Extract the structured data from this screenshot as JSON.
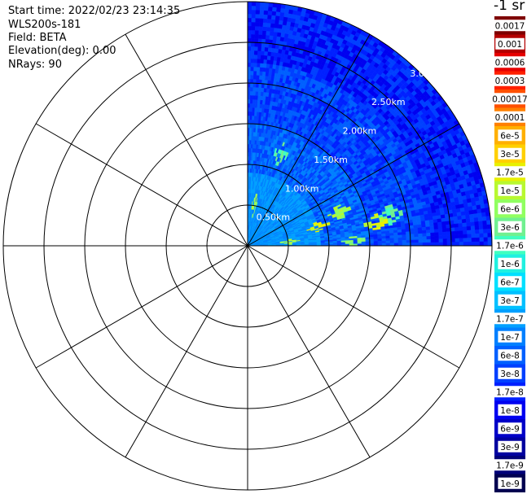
{
  "info": {
    "start_time": "Start time: 2022/02/23 23:14:35",
    "instrument": "WLS200s-181",
    "field": "Field: BETA",
    "elevation": "Elevation(deg): 0.00",
    "nrays": "NRays: 90"
  },
  "colorbar": {
    "unit_label": "-1 sr",
    "levels": [
      "0.0017",
      "0.001",
      "0.0006",
      "0.0003",
      "0.00017",
      "0.0001",
      "6e-5",
      "3e-5",
      "1.7e-5",
      "1e-5",
      "6e-6",
      "3e-6",
      "1.7e-6",
      "1e-6",
      "6e-7",
      "3e-7",
      "1.7e-7",
      "1e-7",
      "6e-8",
      "3e-8",
      "1.7e-8",
      "1e-8",
      "6e-9",
      "3e-9",
      "1.7e-9",
      "1e-9"
    ],
    "colors": [
      "#7f0000",
      "#b40000",
      "#e60000",
      "#ff2000",
      "#ff5000",
      "#ff8000",
      "#ffb000",
      "#ffd000",
      "#e8f000",
      "#b8f830",
      "#90ff60",
      "#70f090",
      "#40ffc0",
      "#20f0e0",
      "#00e0ff",
      "#00c0ff",
      "#00a0ff",
      "#0080ff",
      "#0060ff",
      "#0040ff",
      "#0020ff",
      "#0000f0",
      "#0000c8",
      "#0000a0",
      "#000078",
      "#000050"
    ]
  },
  "chart_data": {
    "type": "heatmap",
    "subtype": "polar PPI sector",
    "azimuth_range_deg": [
      0,
      90
    ],
    "range_rings_km": [
      "0.50km",
      "1.00km",
      "1.50km",
      "2.00km",
      "2.50km",
      "3.0"
    ],
    "ring_values_km": [
      0.5,
      1.0,
      1.5,
      2.0,
      2.5,
      3.0
    ],
    "max_range_km": 3.0,
    "spokes_deg": [
      0,
      30,
      60,
      90,
      120,
      150,
      180,
      210,
      240,
      270,
      300,
      330
    ],
    "background_level": "1e-7",
    "hotspots": [
      {
        "az": 70,
        "r_km": 1.2,
        "level": "1e-5"
      },
      {
        "az": 75,
        "r_km": 0.9,
        "level": "1.7e-5"
      },
      {
        "az": 78,
        "r_km": 1.8,
        "level": "3e-6"
      },
      {
        "az": 80,
        "r_km": 1.6,
        "level": "1.7e-5"
      },
      {
        "az": 85,
        "r_km": 0.5,
        "level": "1e-5"
      },
      {
        "az": 87,
        "r_km": 1.3,
        "level": "6e-6"
      },
      {
        "az": 10,
        "r_km": 0.5,
        "level": "1e-5"
      },
      {
        "az": 20,
        "r_km": 1.2,
        "level": "3e-6"
      }
    ]
  }
}
